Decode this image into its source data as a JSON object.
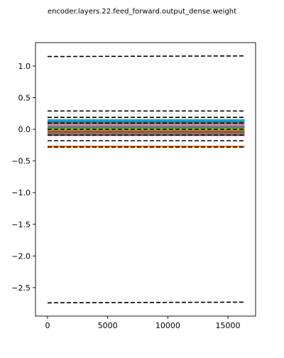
{
  "chart_data": {
    "type": "line",
    "title": "encoder.layers.22.feed_forward.output_dense.weight",
    "xlabel": "",
    "ylabel": "",
    "xlim": [
      -1000,
      17300
    ],
    "ylim": [
      -2.95,
      1.37
    ],
    "x_ticks": [
      0,
      5000,
      10000,
      15000
    ],
    "y_ticks": [
      1.0,
      0.5,
      0.0,
      -0.5,
      -1.0,
      -1.5,
      -2.0,
      -2.5
    ],
    "x_range": [
      0,
      16384
    ],
    "grid": false,
    "legend": "none",
    "band_series": [
      {
        "color": "#1f77b4",
        "value": 0.13
      },
      {
        "color": "#ff7f0e",
        "value": -0.27
      },
      {
        "color": "#2ca02c",
        "value": 0.09
      },
      {
        "color": "#d62728",
        "value": -0.09
      },
      {
        "color": "#9467bd",
        "value": 0.05
      },
      {
        "color": "#8c564b",
        "value": -0.05
      },
      {
        "color": "#e377c2",
        "value": 0.07
      },
      {
        "color": "#7f7f7f",
        "value": 0.11
      },
      {
        "color": "#7f7f7f",
        "value": -0.07
      },
      {
        "color": "#bcbd22",
        "value": 0.01
      },
      {
        "color": "#17becf",
        "value": 0.15
      },
      {
        "color": "#1f77b4",
        "value": -0.03
      },
      {
        "color": "#ff7f0e",
        "value": -0.01
      },
      {
        "color": "#2ca02c",
        "value": 0.03
      }
    ],
    "dashed_series": [
      {
        "color": "#000000",
        "start": 1.15,
        "end": 1.16
      },
      {
        "color": "#000000",
        "start": 0.29,
        "end": 0.29
      },
      {
        "color": "#000000",
        "start": 0.19,
        "end": 0.19
      },
      {
        "color": "#000000",
        "start": 0.1,
        "end": 0.1
      },
      {
        "color": "#000000",
        "start": 0.0,
        "end": 0.0
      },
      {
        "color": "#000000",
        "start": -0.09,
        "end": -0.09
      },
      {
        "color": "#000000",
        "start": -0.18,
        "end": -0.18
      },
      {
        "color": "#000000",
        "start": -0.28,
        "end": -0.28
      },
      {
        "color": "#000000",
        "start": -2.74,
        "end": -2.73
      }
    ]
  }
}
